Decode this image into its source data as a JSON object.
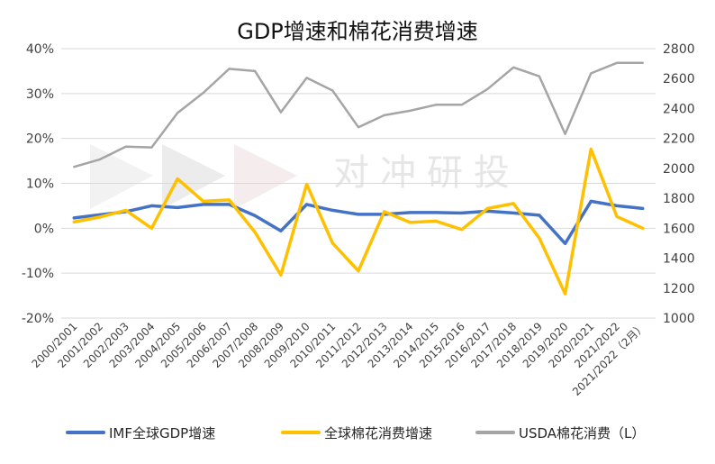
{
  "chart_data": {
    "type": "line",
    "title": "GDP增速和棉花消费增速",
    "watermark": "对冲研投",
    "categories": [
      "2000/2001",
      "2001/2002",
      "2002/2003",
      "2003/2004",
      "2004/2005",
      "2005/2006",
      "2006/2007",
      "2007/2008",
      "2008/2009",
      "2009/2010",
      "2010/2011",
      "2011/2012",
      "2012/2013",
      "2013/2014",
      "2014/2015",
      "2015/2016",
      "2016/2017",
      "2017/2018",
      "2018/2019",
      "2019/2020",
      "2020/2021",
      "2021/2022",
      "2021/2022（2月）"
    ],
    "y_left": {
      "ylim": [
        -20,
        40
      ],
      "ticks": [
        "40%",
        "30%",
        "20%",
        "10%",
        "0%",
        "-10%",
        "-20%"
      ],
      "tick_values": [
        40,
        30,
        20,
        10,
        0,
        -10,
        -20
      ]
    },
    "y_right": {
      "ylim": [
        1000,
        2800
      ],
      "ticks": [
        "2800",
        "2600",
        "2400",
        "2200",
        "2000",
        "1800",
        "1600",
        "1400",
        "1200",
        "1000"
      ],
      "tick_values": [
        2800,
        2600,
        2400,
        2200,
        2000,
        1800,
        1600,
        1400,
        1200,
        1000
      ]
    },
    "grid": true,
    "legend_position": "bottom",
    "series": [
      {
        "name": "IMF全球GDP增速",
        "axis": "left",
        "color": "#4472C4",
        "values": [
          2.3,
          3.0,
          3.7,
          5.0,
          4.6,
          5.3,
          5.3,
          2.8,
          -0.6,
          5.3,
          4.0,
          3.1,
          3.1,
          3.5,
          3.5,
          3.4,
          3.8,
          3.4,
          2.9,
          -3.4,
          6.0,
          5.0,
          4.4
        ]
      },
      {
        "name": "全球棉花消费增速",
        "axis": "left",
        "color": "#FFC000",
        "values": [
          1.4,
          2.5,
          4.0,
          0.0,
          11.0,
          6.0,
          6.3,
          -0.9,
          -10.4,
          9.8,
          -3.3,
          -9.5,
          3.7,
          1.3,
          1.6,
          -0.3,
          4.4,
          5.5,
          -2.2,
          -14.6,
          17.6,
          2.6,
          0.0
        ]
      },
      {
        "name": "USDA棉花消费（L）",
        "axis": "right",
        "color": "#A5A5A5",
        "values": [
          2010,
          2060,
          2145,
          2140,
          2370,
          2505,
          2665,
          2650,
          2375,
          2605,
          2520,
          2275,
          2355,
          2385,
          2425,
          2425,
          2530,
          2675,
          2615,
          2230,
          2635,
          2705,
          2705
        ]
      }
    ]
  }
}
